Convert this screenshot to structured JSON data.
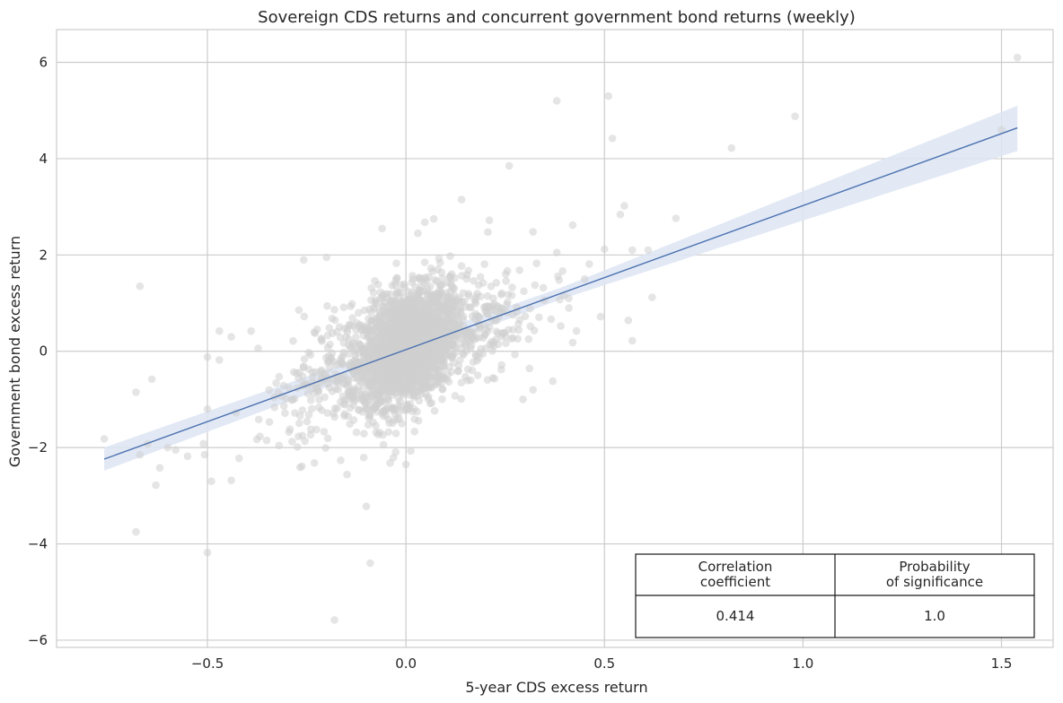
{
  "chart_data": {
    "type": "scatter",
    "title": "Sovereign CDS returns and concurrent government bond returns (weekly)",
    "xlabel": "5-year CDS excess return",
    "ylabel": "Government bond excess return",
    "xlim": [
      -0.88,
      1.63
    ],
    "ylim": [
      -6.15,
      6.68
    ],
    "x_ticks": [
      -0.5,
      0.0,
      0.5,
      1.0,
      1.5
    ],
    "x_tick_labels": [
      "−0.5",
      "0.0",
      "0.5",
      "1.0",
      "1.5"
    ],
    "y_ticks": [
      -6,
      -4,
      -2,
      0,
      2,
      4,
      6
    ],
    "y_tick_labels": [
      "−6",
      "−4",
      "−2",
      "0",
      "2",
      "4",
      "6"
    ],
    "grid": true,
    "point_color": "#cfcfcf",
    "line_color": "#4c72b0",
    "band_color": "#dde5f3",
    "regression": {
      "x_start": -0.76,
      "x_end": 1.54,
      "y_start": -2.24,
      "y_end": 4.64,
      "band_start": [
        -2.48,
        -2.0
      ],
      "band_end": [
        4.16,
        5.1
      ]
    },
    "outliers": [
      [
        1.54,
        6.1
      ],
      [
        0.51,
        5.3
      ],
      [
        0.38,
        5.2
      ],
      [
        0.98,
        4.88
      ],
      [
        0.82,
        4.22
      ],
      [
        0.52,
        4.42
      ],
      [
        1.5,
        4.6
      ],
      [
        0.26,
        3.85
      ],
      [
        0.14,
        3.15
      ],
      [
        0.55,
        3.02
      ],
      [
        0.68,
        2.76
      ],
      [
        0.42,
        2.62
      ],
      [
        0.54,
        2.84
      ],
      [
        0.5,
        2.12
      ],
      [
        0.57,
        2.1
      ],
      [
        0.61,
        2.1
      ],
      [
        0.62,
        1.12
      ],
      [
        0.56,
        0.64
      ],
      [
        0.57,
        0.22
      ],
      [
        0.49,
        0.72
      ],
      [
        0.42,
        0.18
      ],
      [
        0.37,
        -0.62
      ],
      [
        0.24,
        -0.38
      ],
      [
        -0.67,
        1.35
      ],
      [
        -0.68,
        -0.85
      ],
      [
        -0.64,
        -0.58
      ],
      [
        -0.76,
        -1.82
      ],
      [
        -0.67,
        -2.15
      ],
      [
        -0.65,
        -1.92
      ],
      [
        -0.62,
        -2.42
      ],
      [
        -0.63,
        -2.78
      ],
      [
        -0.68,
        -3.75
      ],
      [
        -0.5,
        -4.18
      ],
      [
        -0.49,
        -2.7
      ],
      [
        -0.44,
        -2.68
      ],
      [
        -0.09,
        -4.4
      ],
      [
        -0.18,
        -5.58
      ],
      [
        -0.1,
        -3.22
      ],
      [
        -0.47,
        0.42
      ],
      [
        -0.44,
        0.3
      ],
      [
        -0.39,
        0.42
      ],
      [
        -0.5,
        -0.12
      ],
      [
        -0.47,
        -0.18
      ],
      [
        -0.55,
        -2.18
      ],
      [
        -0.58,
        -2.05
      ],
      [
        -0.6,
        -2.0
      ],
      [
        -0.51,
        -1.92
      ],
      [
        -0.5,
        -1.2
      ],
      [
        -0.2,
        1.95
      ],
      [
        -0.06,
        2.55
      ],
      [
        0.03,
        2.45
      ],
      [
        0.07,
        2.75
      ],
      [
        0.21,
        2.72
      ],
      [
        0.32,
        2.48
      ],
      [
        0.38,
        2.05
      ],
      [
        0.45,
        1.5
      ],
      [
        0.41,
        1.1
      ],
      [
        0.32,
        -0.8
      ],
      [
        -0.04,
        -2.32
      ],
      [
        0.0,
        -2.35
      ]
    ],
    "correlation_label": "Correlation\ncoefficient",
    "probability_label": "Probability\nof significance",
    "correlation_value": "0.414",
    "probability_value": "1.0"
  }
}
